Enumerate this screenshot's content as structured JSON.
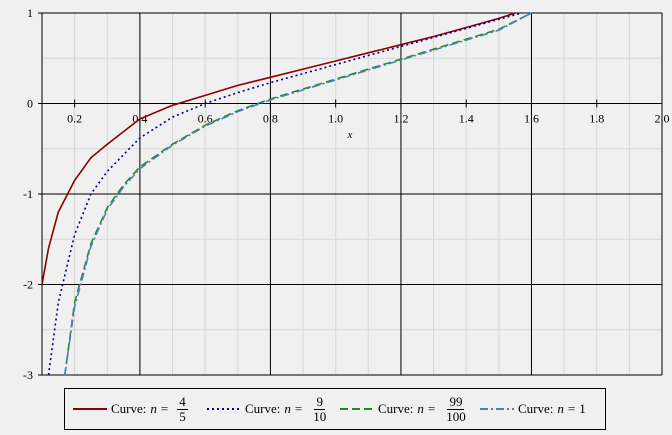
{
  "chart_data": {
    "type": "line",
    "xlabel": "x",
    "ylabel": "",
    "xlim": [
      0.1,
      2.0
    ],
    "ylim": [
      -3,
      1
    ],
    "x_ticks": [
      "0.2",
      "0.4",
      "0.6",
      "0.8",
      "1.0",
      "1.2",
      "1.4",
      "1.6",
      "1.8",
      "2.0"
    ],
    "y_ticks": [
      "1",
      "0",
      "-1",
      "-2",
      "-3"
    ],
    "grid": true,
    "legend_position": "bottom",
    "series": [
      {
        "legend_prefix": "Curve:",
        "n_label": "n",
        "num": "4",
        "den": "5",
        "color": "#8b0000",
        "dash": "solid",
        "x": [
          0.1,
          0.12,
          0.15,
          0.2,
          0.25,
          0.3,
          0.4,
          0.5,
          0.6,
          0.7,
          0.8,
          0.9,
          1.0,
          1.1,
          1.2,
          1.3,
          1.4,
          1.5,
          1.55
        ],
        "y": [
          -2.0,
          -1.6,
          -1.2,
          -0.85,
          -0.6,
          -0.45,
          -0.17,
          -0.02,
          0.09,
          0.2,
          0.29,
          0.38,
          0.47,
          0.56,
          0.65,
          0.74,
          0.84,
          0.94,
          1.0
        ]
      },
      {
        "legend_prefix": "Curve:",
        "n_label": "n",
        "num": "9",
        "den": "10",
        "color": "#00008b",
        "dash": "dotted",
        "x": [
          0.12,
          0.15,
          0.2,
          0.25,
          0.3,
          0.4,
          0.5,
          0.6,
          0.7,
          0.8,
          0.9,
          1.0,
          1.1,
          1.2,
          1.3,
          1.4,
          1.5,
          1.57
        ],
        "y": [
          -3.0,
          -2.2,
          -1.45,
          -1.0,
          -0.75,
          -0.38,
          -0.15,
          0.0,
          0.12,
          0.23,
          0.33,
          0.43,
          0.53,
          0.63,
          0.73,
          0.83,
          0.93,
          1.0
        ]
      },
      {
        "legend_prefix": "Curve:",
        "n_label": "n",
        "num": "99",
        "den": "100",
        "color": "#228b22",
        "dash": "dashed",
        "x": [
          0.17,
          0.2,
          0.25,
          0.3,
          0.35,
          0.4,
          0.5,
          0.6,
          0.7,
          0.8,
          0.9,
          1.0,
          1.1,
          1.2,
          1.3,
          1.4,
          1.5,
          1.6
        ],
        "y": [
          -3.0,
          -2.2,
          -1.55,
          -1.15,
          -0.9,
          -0.7,
          -0.45,
          -0.24,
          -0.08,
          0.05,
          0.16,
          0.27,
          0.38,
          0.49,
          0.6,
          0.71,
          0.82,
          1.0
        ]
      },
      {
        "legend_prefix": "Curve:",
        "n_label": "n",
        "num": "",
        "den": "",
        "value": "1",
        "color": "#4682b4",
        "dash": "dashdot",
        "x": [
          0.17,
          0.2,
          0.25,
          0.3,
          0.35,
          0.4,
          0.5,
          0.6,
          0.7,
          0.8,
          0.9,
          1.0,
          1.1,
          1.2,
          1.3,
          1.4,
          1.5,
          1.6
        ],
        "y": [
          -3.0,
          -2.25,
          -1.58,
          -1.17,
          -0.92,
          -0.72,
          -0.46,
          -0.25,
          -0.09,
          0.04,
          0.15,
          0.26,
          0.37,
          0.48,
          0.59,
          0.7,
          0.81,
          1.0
        ]
      }
    ]
  }
}
